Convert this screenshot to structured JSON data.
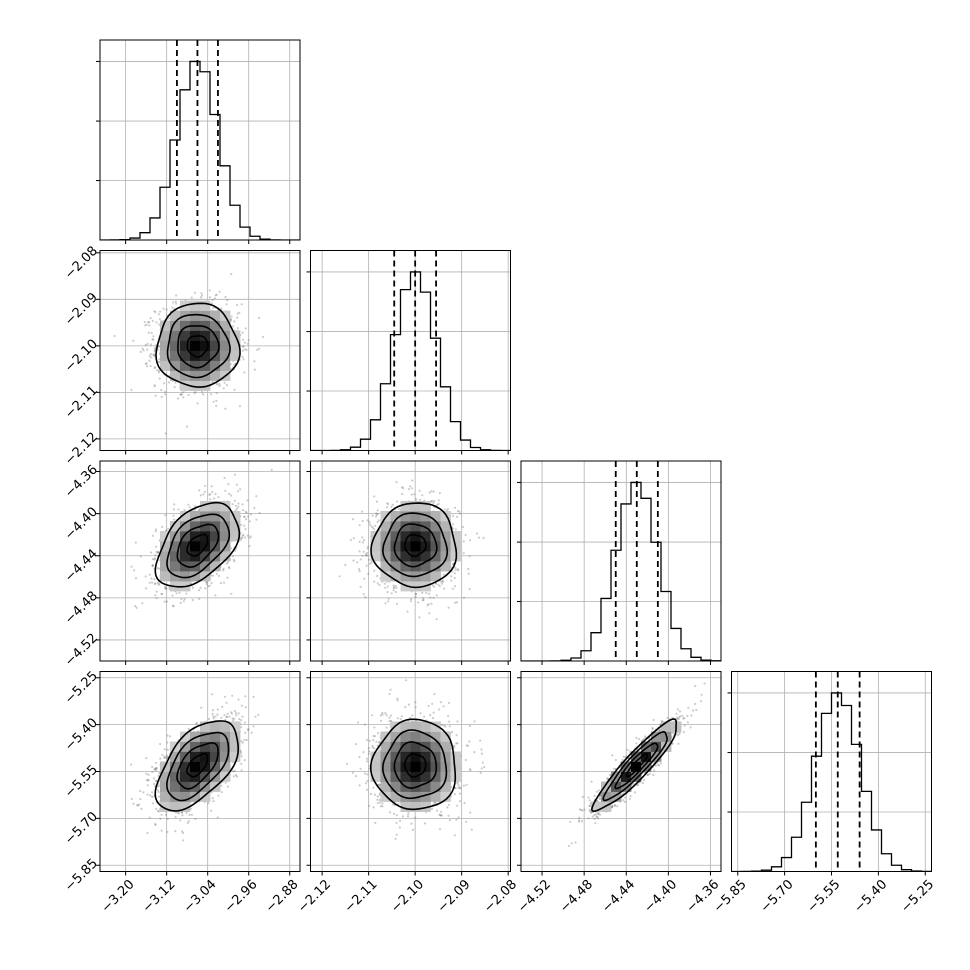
{
  "chart_data": {
    "type": "corner",
    "title": "",
    "grid": true,
    "colors": {
      "line": "#000000",
      "grid": "#b0b0b0",
      "scatter": "#6d6d6d",
      "density_low": "#f2f2f2",
      "density_high": "#000000"
    },
    "parameters": [
      {
        "mean": -3.06,
        "sigma": 0.04,
        "q16": -3.1,
        "q50": -3.06,
        "q84": -3.02,
        "range": [
          -3.25,
          -2.86
        ],
        "ticks": [
          -3.2,
          -3.12,
          -3.04,
          -2.96,
          -2.88
        ],
        "tick_labels": [
          "−3.20",
          "−3.12",
          "−3.04",
          "−2.96",
          "−2.88"
        ]
      },
      {
        "mean": -2.1,
        "sigma": 0.0045,
        "q16": -2.1045,
        "q50": -2.1,
        "q84": -2.0955,
        "range": [
          -2.1225,
          -2.0795
        ],
        "ticks": [
          -2.12,
          -2.11,
          -2.1,
          -2.09,
          -2.08
        ],
        "tick_labels": [
          "−2.12",
          "−2.11",
          "−2.10",
          "−2.09",
          "−2.08"
        ]
      },
      {
        "mean": -4.43,
        "sigma": 0.02,
        "q16": -4.45,
        "q50": -4.43,
        "q84": -4.41,
        "range": [
          -4.54,
          -4.35
        ],
        "ticks": [
          -4.52,
          -4.48,
          -4.44,
          -4.4,
          -4.36
        ],
        "tick_labels": [
          "−4.52",
          "−4.48",
          "−4.44",
          "−4.40",
          "−4.36"
        ]
      },
      {
        "mean": -5.53,
        "sigma": 0.072,
        "q16": -5.6,
        "q50": -5.53,
        "q84": -5.46,
        "range": [
          -5.87,
          -5.23
        ],
        "ticks": [
          -5.85,
          -5.7,
          -5.55,
          -5.4,
          -5.25
        ],
        "tick_labels": [
          "−5.85",
          "−5.70",
          "−5.55",
          "−5.40",
          "−5.25"
        ]
      }
    ],
    "correlations": [
      {
        "pair": [
          0,
          1
        ],
        "rho": 0.0
      },
      {
        "pair": [
          0,
          2
        ],
        "rho": 0.45
      },
      {
        "pair": [
          1,
          2
        ],
        "rho": 0.0
      },
      {
        "pair": [
          0,
          3
        ],
        "rho": 0.55
      },
      {
        "pair": [
          1,
          3
        ],
        "rho": 0.0
      },
      {
        "pair": [
          2,
          3
        ],
        "rho": 0.92
      }
    ],
    "histogram_bins": 20,
    "contour_levels_sigma": [
      0.5,
      1.0,
      1.5,
      2.0
    ]
  }
}
